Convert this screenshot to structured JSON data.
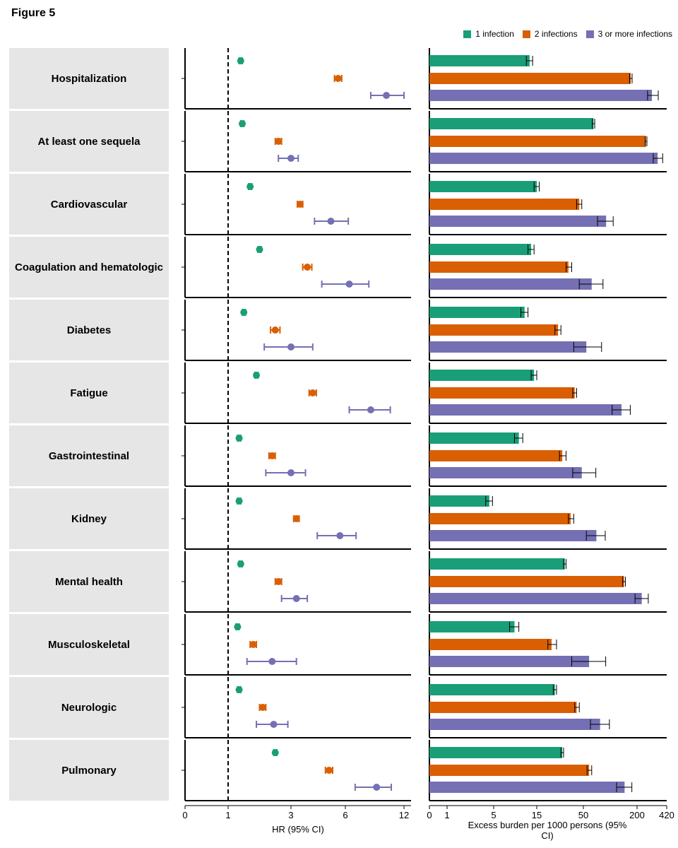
{
  "figure_title": "Figure 5",
  "colors": {
    "one_infection": "#1a9e77",
    "two_infections": "#d95f02",
    "three_plus": "#7570b3",
    "label_bg": "#e6e6e6"
  },
  "legend": [
    {
      "label": "1 infection",
      "color": "#1a9e77"
    },
    {
      "label": "2 infections",
      "color": "#d95f02"
    },
    {
      "label": "3 or more infections",
      "color": "#7570b3"
    }
  ],
  "chart_data": [
    {
      "type": "forest",
      "title": "",
      "xlabel": "HR (95% CI)",
      "x_ticks": [
        "0",
        "1",
        "3",
        "6",
        "12"
      ],
      "reference_line": 1,
      "categories": [
        "Hospitalization",
        "At least one sequela",
        "Cardiovascular",
        "Coagulation and hematologic",
        "Diabetes",
        "Fatigue",
        "Gastrointestinal",
        "Kidney",
        "Mental health",
        "Musculoskeletal",
        "Neurologic",
        "Pulmonary"
      ],
      "series": [
        {
          "name": "1 infection",
          "hr": [
            1.4,
            1.45,
            1.7,
            2.0,
            1.5,
            1.9,
            1.35,
            1.35,
            1.4,
            1.3,
            1.35,
            2.5
          ],
          "lo": [
            1.35,
            1.4,
            1.65,
            1.95,
            1.45,
            1.85,
            1.3,
            1.3,
            1.35,
            1.25,
            1.3,
            2.45
          ],
          "hi": [
            1.45,
            1.5,
            1.75,
            2.05,
            1.55,
            1.95,
            1.4,
            1.4,
            1.45,
            1.35,
            1.4,
            2.55
          ]
        },
        {
          "name": "2 infections",
          "hr": [
            5.6,
            2.6,
            3.5,
            3.9,
            2.5,
            4.2,
            2.4,
            3.3,
            2.6,
            1.8,
            2.1,
            5.1
          ],
          "lo": [
            5.4,
            2.5,
            3.35,
            3.65,
            2.35,
            4.0,
            2.3,
            3.15,
            2.5,
            1.7,
            2.0,
            4.9
          ],
          "hi": [
            5.8,
            2.7,
            3.65,
            4.15,
            2.65,
            4.4,
            2.5,
            3.45,
            2.7,
            1.9,
            2.2,
            5.3
          ],
          "note_unused": null
        },
        {
          "name": "3 or more infections",
          "hr": [
            10.2,
            3.0,
            5.2,
            6.4,
            3.0,
            8.6,
            3.0,
            5.7,
            3.3,
            2.4,
            2.45,
            9.2
          ],
          "lo": [
            8.6,
            2.6,
            4.3,
            4.7,
            2.15,
            6.4,
            2.2,
            4.45,
            2.7,
            1.6,
            1.9,
            7.0
          ],
          "hi": [
            12.1,
            3.4,
            6.3,
            8.4,
            4.2,
            10.6,
            3.8,
            7.1,
            3.9,
            3.3,
            2.9,
            10.7
          ]
        }
      ]
    },
    {
      "type": "bar",
      "title": "",
      "xlabel": "Excess burden per 1000 persons (95% CI)",
      "x_ticks": [
        "0",
        "1",
        "5",
        "15",
        "50",
        "200",
        "420"
      ],
      "x_scale": "symlog",
      "categories": [
        "Hospitalization",
        "At least one sequela",
        "Cardiovascular",
        "Coagulation and hematologic",
        "Diabetes",
        "Fatigue",
        "Gastrointestinal",
        "Kidney",
        "Mental health",
        "Musculoskeletal",
        "Neurologic",
        "Pulmonary"
      ],
      "series": [
        {
          "name": "1 infection",
          "values": [
            12.5,
            65,
            15,
            13,
            11,
            14,
            9.5,
            4.3,
            31,
            8.5,
            24,
            29
          ],
          "lo": [
            11.5,
            63,
            14,
            12,
            10,
            13,
            8.5,
            3.8,
            30,
            7.5,
            23,
            28
          ],
          "hi": [
            13.5,
            67,
            16,
            14,
            12,
            15,
            10.5,
            4.8,
            32,
            9.5,
            25,
            30
          ]
        },
        {
          "name": "2 infections",
          "values": [
            170,
            250,
            45,
            34,
            26,
            40,
            29,
            36,
            143,
            22,
            42,
            58
          ],
          "lo": [
            165,
            245,
            42,
            32,
            24,
            38,
            27,
            34,
            138,
            20,
            40,
            55
          ],
          "hi": [
            176,
            256,
            48,
            37,
            28,
            42,
            32,
            39,
            148,
            25,
            45,
            62
          ]
        },
        {
          "name": "3 or more infections",
          "values": [
            290,
            335,
            90,
            62,
            54,
            134,
            48,
            70,
            225,
            58,
            77,
            145
          ],
          "lo": [
            260,
            300,
            72,
            45,
            39,
            105,
            38,
            54,
            190,
            37,
            60,
            118
          ],
          "hi": [
            340,
            380,
            108,
            83,
            80,
            168,
            69,
            88,
            265,
            89,
            98,
            175
          ]
        }
      ]
    }
  ]
}
